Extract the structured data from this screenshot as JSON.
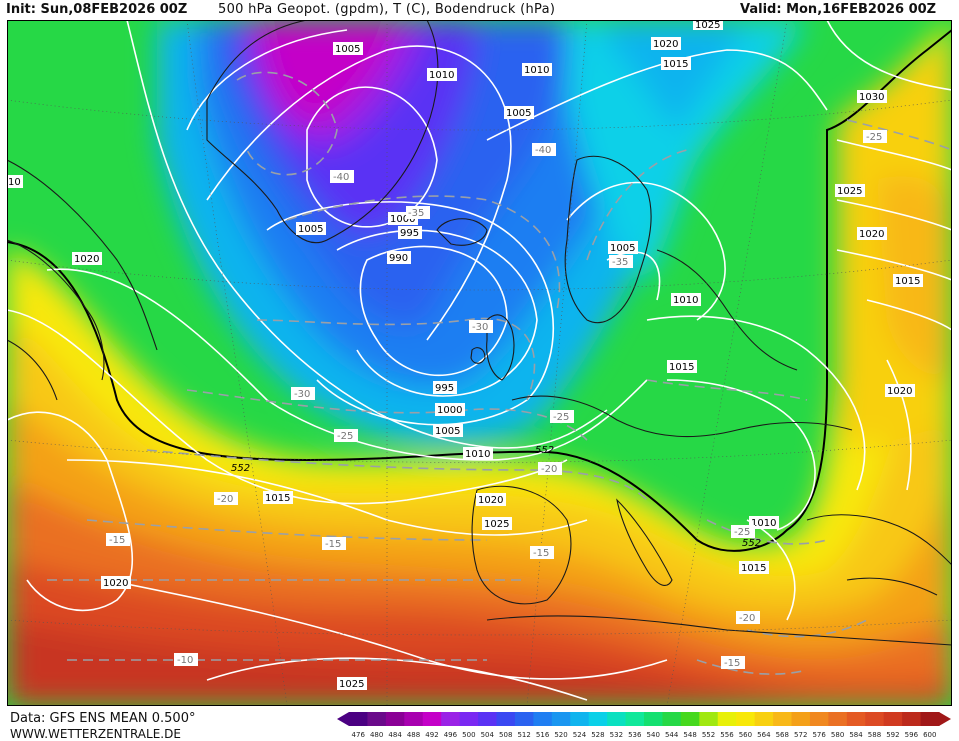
{
  "header": {
    "init": "Init: Sun,08FEB2026 00Z",
    "title": "500 hPa Geopot. (gpdm), T (C), Bodendruck (hPa)",
    "valid": "Valid: Mon,16FEB2026 00Z"
  },
  "footer": {
    "data_source": "Data: GFS ENS MEAN 0.500°",
    "website": "WWW.WETTERZENTRALE.DE"
  },
  "legend": {
    "values": [
      "476",
      "480",
      "484",
      "488",
      "492",
      "496",
      "500",
      "504",
      "508",
      "512",
      "516",
      "520",
      "524",
      "528",
      "532",
      "536",
      "540",
      "544",
      "548",
      "552",
      "556",
      "560",
      "564",
      "568",
      "572",
      "576",
      "580",
      "584",
      "588",
      "592",
      "596",
      "600"
    ],
    "colors": [
      "#4b0082",
      "#6a0a8a",
      "#8a0096",
      "#a800b0",
      "#c400c8",
      "#9a22e6",
      "#7a28f2",
      "#5a32f4",
      "#3a48f2",
      "#2a62f0",
      "#1f7ef2",
      "#1a96f0",
      "#10b4ee",
      "#0ad0e8",
      "#0ae0c0",
      "#10e89a",
      "#14e070",
      "#26d846",
      "#46d81e",
      "#a0e810",
      "#e8f008",
      "#f8e808",
      "#f8d010",
      "#f8b818",
      "#f4a018",
      "#f08820",
      "#ea7024",
      "#e45a24",
      "#dc4a24",
      "#d03a20",
      "#bc2a1c",
      "#a01818"
    ]
  },
  "map": {
    "isobar_labels": [
      {
        "text": "1005"
      },
      {
        "text": "1010"
      },
      {
        "text": "1010"
      },
      {
        "text": "1005"
      },
      {
        "text": "1020"
      },
      {
        "text": "1015"
      },
      {
        "text": "1025"
      },
      {
        "text": "1030"
      },
      {
        "text": "1025"
      },
      {
        "text": "1020"
      },
      {
        "text": "1015"
      },
      {
        "text": "1020"
      },
      {
        "text": "1000"
      },
      {
        "text": "995"
      },
      {
        "text": "990"
      },
      {
        "text": "1005"
      },
      {
        "text": "1005"
      },
      {
        "text": "1010"
      },
      {
        "text": "1015"
      },
      {
        "text": "995"
      },
      {
        "text": "1000"
      },
      {
        "text": "1005"
      },
      {
        "text": "1010"
      },
      {
        "text": "1015"
      },
      {
        "text": "1020"
      },
      {
        "text": "1025"
      },
      {
        "text": "1020"
      },
      {
        "text": "1020"
      },
      {
        "text": "1010"
      },
      {
        "text": "1015"
      },
      {
        "text": "1025"
      },
      {
        "text": "10"
      }
    ],
    "temperature_labels": [
      {
        "text": "-40"
      },
      {
        "text": "-40"
      },
      {
        "text": "-35"
      },
      {
        "text": "-35"
      },
      {
        "text": "-30"
      },
      {
        "text": "-30"
      },
      {
        "text": "-25"
      },
      {
        "text": "-25"
      },
      {
        "text": "-20"
      },
      {
        "text": "-20"
      },
      {
        "text": "-15"
      },
      {
        "text": "-15"
      },
      {
        "text": "-15"
      },
      {
        "text": "-10"
      },
      {
        "text": "-25"
      },
      {
        "text": "-25"
      },
      {
        "text": "-20"
      },
      {
        "text": "-15"
      }
    ],
    "geopotential_labels": [
      {
        "text": "552"
      },
      {
        "text": "552"
      },
      {
        "text": "552"
      }
    ]
  }
}
